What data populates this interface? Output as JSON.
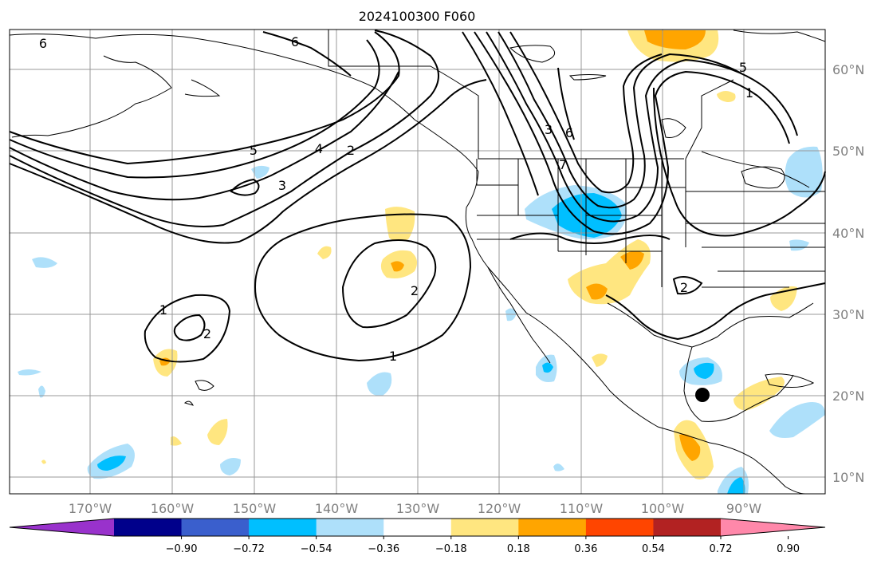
{
  "title": "2024100300 F060",
  "colors": {
    "neg_strong": "#00bfff",
    "neg_weak": "#aee0fa",
    "pos_weak": "#ffe680",
    "pos_strong": "#ffa500",
    "land": "#ffffff",
    "grid": "#999999"
  },
  "lon_ticks": [
    "170°W",
    "160°W",
    "150°W",
    "140°W",
    "130°W",
    "120°W",
    "110°W",
    "100°W",
    "90°W"
  ],
  "lat_ticks": [
    "60°N",
    "50°N",
    "40°N",
    "30°N",
    "20°N",
    "10°N"
  ],
  "colorbar": {
    "colors": [
      "#9932cc",
      "#00008b",
      "#3a5fcd",
      "#00bfff",
      "#aee0fa",
      "#ffffff",
      "#ffe680",
      "#ffa500",
      "#ff4500",
      "#b22222",
      "#ff88aa"
    ],
    "tick_labels": [
      "−0.90",
      "−0.72",
      "−0.54",
      "−0.36",
      "−0.18",
      "0.18",
      "0.36",
      "0.54",
      "0.72",
      "0.90"
    ]
  },
  "contour_labels": [
    "6",
    "6",
    "5",
    "4",
    "3",
    "2",
    "2",
    "1",
    "2",
    "1",
    "1",
    "2",
    "3",
    "6",
    "7",
    "5"
  ],
  "marker": "storm-position"
}
